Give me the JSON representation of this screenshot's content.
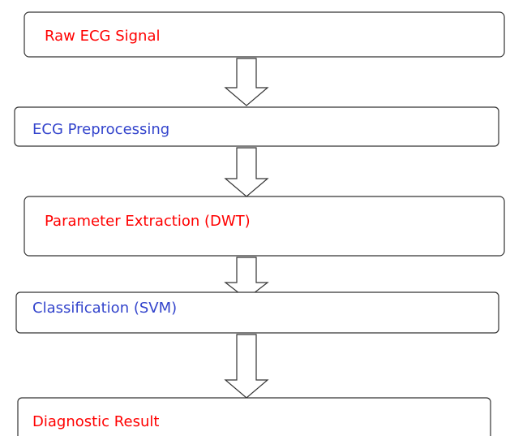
{
  "nodes": [
    {
      "label": "Raw ECG Signal"
    },
    {
      "label": "ECG Preprocessing"
    },
    {
      "label": "Parameter Extraction (DWT)"
    },
    {
      "label": "Classification (SVM)"
    },
    {
      "label": "Diagnostic Result"
    }
  ]
}
